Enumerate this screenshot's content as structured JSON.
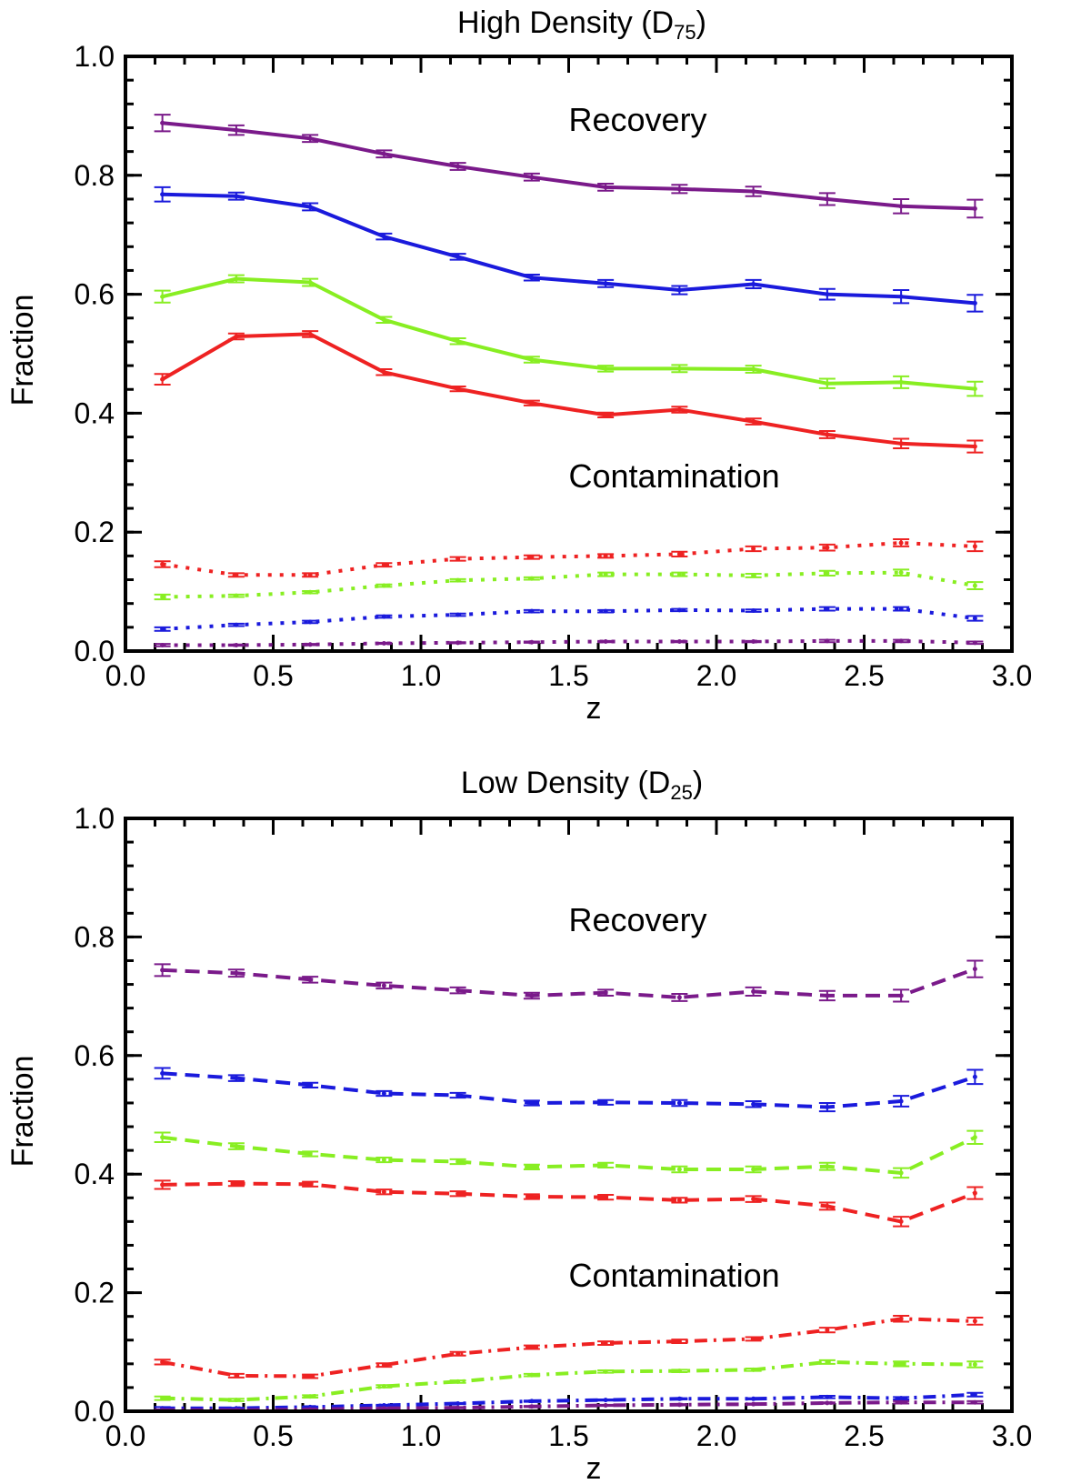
{
  "chart_data": [
    {
      "type": "line",
      "title": "High Density (D",
      "title_sub": "75",
      "title_end": ")",
      "xlabel": "z",
      "ylabel": "Fraction",
      "xlim": [
        0.0,
        3.0
      ],
      "ylim": [
        0.0,
        1.0
      ],
      "xticks": [
        "0.0",
        "0.5",
        "1.0",
        "1.5",
        "2.0",
        "2.5",
        "3.0"
      ],
      "yticks": [
        "0.0",
        "0.2",
        "0.4",
        "0.6",
        "0.8",
        "1.0"
      ],
      "annotations": [
        {
          "text": "Recovery",
          "x": 1.5,
          "y": 0.875
        },
        {
          "text": "Contamination",
          "x": 1.5,
          "y": 0.275
        }
      ],
      "x": [
        0.125,
        0.375,
        0.625,
        0.875,
        1.125,
        1.375,
        1.625,
        1.875,
        2.125,
        2.375,
        2.625,
        2.875
      ],
      "series": [
        {
          "name": "recovery-purple",
          "color": "#7a1a8a",
          "style": "solid",
          "values": [
            0.888,
            0.876,
            0.862,
            0.836,
            0.815,
            0.797,
            0.78,
            0.777,
            0.773,
            0.76,
            0.748,
            0.744
          ],
          "errors": [
            0.014,
            0.008,
            0.006,
            0.006,
            0.006,
            0.006,
            0.006,
            0.007,
            0.008,
            0.01,
            0.012,
            0.015
          ]
        },
        {
          "name": "recovery-blue",
          "color": "#1a1adc",
          "style": "solid",
          "values": [
            0.768,
            0.765,
            0.747,
            0.697,
            0.663,
            0.628,
            0.618,
            0.607,
            0.617,
            0.6,
            0.596,
            0.585
          ],
          "errors": [
            0.012,
            0.006,
            0.006,
            0.005,
            0.005,
            0.005,
            0.006,
            0.007,
            0.007,
            0.009,
            0.011,
            0.014
          ]
        },
        {
          "name": "recovery-green",
          "color": "#88ee22",
          "style": "solid",
          "values": [
            0.596,
            0.626,
            0.62,
            0.557,
            0.521,
            0.49,
            0.475,
            0.475,
            0.474,
            0.45,
            0.452,
            0.441
          ],
          "errors": [
            0.01,
            0.006,
            0.006,
            0.005,
            0.005,
            0.005,
            0.005,
            0.006,
            0.006,
            0.008,
            0.01,
            0.012
          ]
        },
        {
          "name": "recovery-red",
          "color": "#ee2222",
          "style": "solid",
          "values": [
            0.457,
            0.529,
            0.533,
            0.469,
            0.441,
            0.417,
            0.397,
            0.406,
            0.386,
            0.364,
            0.349,
            0.344
          ],
          "errors": [
            0.009,
            0.005,
            0.005,
            0.005,
            0.004,
            0.004,
            0.004,
            0.005,
            0.005,
            0.006,
            0.008,
            0.01
          ]
        },
        {
          "name": "contamination-red",
          "color": "#ee2222",
          "style": "dotted",
          "values": [
            0.146,
            0.128,
            0.128,
            0.145,
            0.155,
            0.158,
            0.16,
            0.163,
            0.172,
            0.174,
            0.182,
            0.176
          ],
          "errors": [
            0.005,
            0.003,
            0.003,
            0.003,
            0.003,
            0.003,
            0.003,
            0.004,
            0.004,
            0.005,
            0.006,
            0.008
          ]
        },
        {
          "name": "contamination-green",
          "color": "#88ee22",
          "style": "dotted",
          "values": [
            0.091,
            0.093,
            0.099,
            0.11,
            0.119,
            0.122,
            0.129,
            0.129,
            0.127,
            0.131,
            0.132,
            0.11
          ],
          "errors": [
            0.004,
            0.002,
            0.002,
            0.002,
            0.002,
            0.002,
            0.003,
            0.003,
            0.003,
            0.004,
            0.005,
            0.006
          ]
        },
        {
          "name": "contamination-blue",
          "color": "#1a1adc",
          "style": "dotted",
          "values": [
            0.037,
            0.044,
            0.049,
            0.058,
            0.061,
            0.067,
            0.067,
            0.069,
            0.068,
            0.071,
            0.071,
            0.055
          ],
          "errors": [
            0.003,
            0.002,
            0.002,
            0.002,
            0.002,
            0.002,
            0.002,
            0.002,
            0.002,
            0.003,
            0.003,
            0.004
          ]
        },
        {
          "name": "contamination-purple",
          "color": "#7a1a8a",
          "style": "dotted",
          "values": [
            0.01,
            0.01,
            0.011,
            0.013,
            0.014,
            0.015,
            0.016,
            0.016,
            0.016,
            0.017,
            0.017,
            0.014
          ],
          "errors": [
            0.002,
            0.001,
            0.001,
            0.001,
            0.001,
            0.001,
            0.001,
            0.001,
            0.001,
            0.002,
            0.002,
            0.002
          ]
        }
      ]
    },
    {
      "type": "line",
      "title": "Low Density (D",
      "title_sub": "25",
      "title_end": ")",
      "xlabel": "z",
      "ylabel": "Fraction",
      "xlim": [
        0.0,
        3.0
      ],
      "ylim": [
        0.0,
        1.0
      ],
      "xticks": [
        "0.0",
        "0.5",
        "1.0",
        "1.5",
        "2.0",
        "2.5",
        "3.0"
      ],
      "yticks": [
        "0.0",
        "0.2",
        "0.4",
        "0.6",
        "0.8",
        "1.0"
      ],
      "annotations": [
        {
          "text": "Recovery",
          "x": 1.5,
          "y": 0.81
        },
        {
          "text": "Contamination",
          "x": 1.5,
          "y": 0.21
        }
      ],
      "x": [
        0.125,
        0.375,
        0.625,
        0.875,
        1.125,
        1.375,
        1.625,
        1.875,
        2.125,
        2.375,
        2.625,
        2.875
      ],
      "series": [
        {
          "name": "recovery-purple",
          "color": "#7a1a8a",
          "style": "dashed",
          "values": [
            0.744,
            0.739,
            0.728,
            0.718,
            0.71,
            0.701,
            0.706,
            0.698,
            0.708,
            0.701,
            0.701,
            0.746
          ],
          "errors": [
            0.01,
            0.006,
            0.005,
            0.005,
            0.005,
            0.005,
            0.005,
            0.006,
            0.007,
            0.008,
            0.01,
            0.014
          ]
        },
        {
          "name": "recovery-blue",
          "color": "#1a1adc",
          "style": "dashed",
          "values": [
            0.57,
            0.562,
            0.55,
            0.536,
            0.533,
            0.52,
            0.521,
            0.52,
            0.518,
            0.513,
            0.523,
            0.564
          ],
          "errors": [
            0.009,
            0.005,
            0.004,
            0.004,
            0.004,
            0.004,
            0.004,
            0.005,
            0.005,
            0.007,
            0.009,
            0.012
          ]
        },
        {
          "name": "recovery-green",
          "color": "#88ee22",
          "style": "dashed",
          "values": [
            0.462,
            0.447,
            0.434,
            0.424,
            0.421,
            0.412,
            0.415,
            0.408,
            0.408,
            0.413,
            0.402,
            0.462
          ],
          "errors": [
            0.008,
            0.005,
            0.004,
            0.004,
            0.004,
            0.004,
            0.004,
            0.005,
            0.005,
            0.006,
            0.008,
            0.011
          ]
        },
        {
          "name": "recovery-red",
          "color": "#ee2222",
          "style": "dashed",
          "values": [
            0.382,
            0.384,
            0.383,
            0.37,
            0.367,
            0.362,
            0.361,
            0.356,
            0.358,
            0.346,
            0.32,
            0.368
          ],
          "errors": [
            0.007,
            0.004,
            0.004,
            0.004,
            0.004,
            0.004,
            0.004,
            0.004,
            0.005,
            0.006,
            0.008,
            0.01
          ]
        },
        {
          "name": "contamination-red",
          "color": "#ee2222",
          "style": "dashdot",
          "values": [
            0.083,
            0.06,
            0.059,
            0.078,
            0.097,
            0.108,
            0.115,
            0.118,
            0.122,
            0.137,
            0.156,
            0.152
          ],
          "errors": [
            0.004,
            0.003,
            0.003,
            0.003,
            0.003,
            0.003,
            0.003,
            0.003,
            0.003,
            0.004,
            0.005,
            0.006
          ]
        },
        {
          "name": "contamination-green",
          "color": "#88ee22",
          "style": "dashdot",
          "values": [
            0.022,
            0.019,
            0.025,
            0.042,
            0.05,
            0.061,
            0.067,
            0.068,
            0.07,
            0.083,
            0.08,
            0.079
          ],
          "errors": [
            0.003,
            0.002,
            0.002,
            0.002,
            0.002,
            0.002,
            0.002,
            0.002,
            0.002,
            0.003,
            0.004,
            0.005
          ]
        },
        {
          "name": "contamination-blue",
          "color": "#1a1adc",
          "style": "dashdot",
          "values": [
            0.005,
            0.005,
            0.007,
            0.01,
            0.013,
            0.017,
            0.019,
            0.021,
            0.021,
            0.024,
            0.022,
            0.028
          ],
          "errors": [
            0.002,
            0.001,
            0.001,
            0.001,
            0.001,
            0.001,
            0.001,
            0.001,
            0.001,
            0.002,
            0.002,
            0.003
          ]
        },
        {
          "name": "contamination-purple",
          "color": "#7a1a8a",
          "style": "dashdot",
          "values": [
            0.002,
            0.002,
            0.003,
            0.005,
            0.006,
            0.008,
            0.01,
            0.011,
            0.012,
            0.014,
            0.015,
            0.015
          ],
          "errors": [
            0.001,
            0.001,
            0.001,
            0.001,
            0.001,
            0.001,
            0.001,
            0.001,
            0.001,
            0.001,
            0.002,
            0.002
          ]
        }
      ]
    }
  ]
}
